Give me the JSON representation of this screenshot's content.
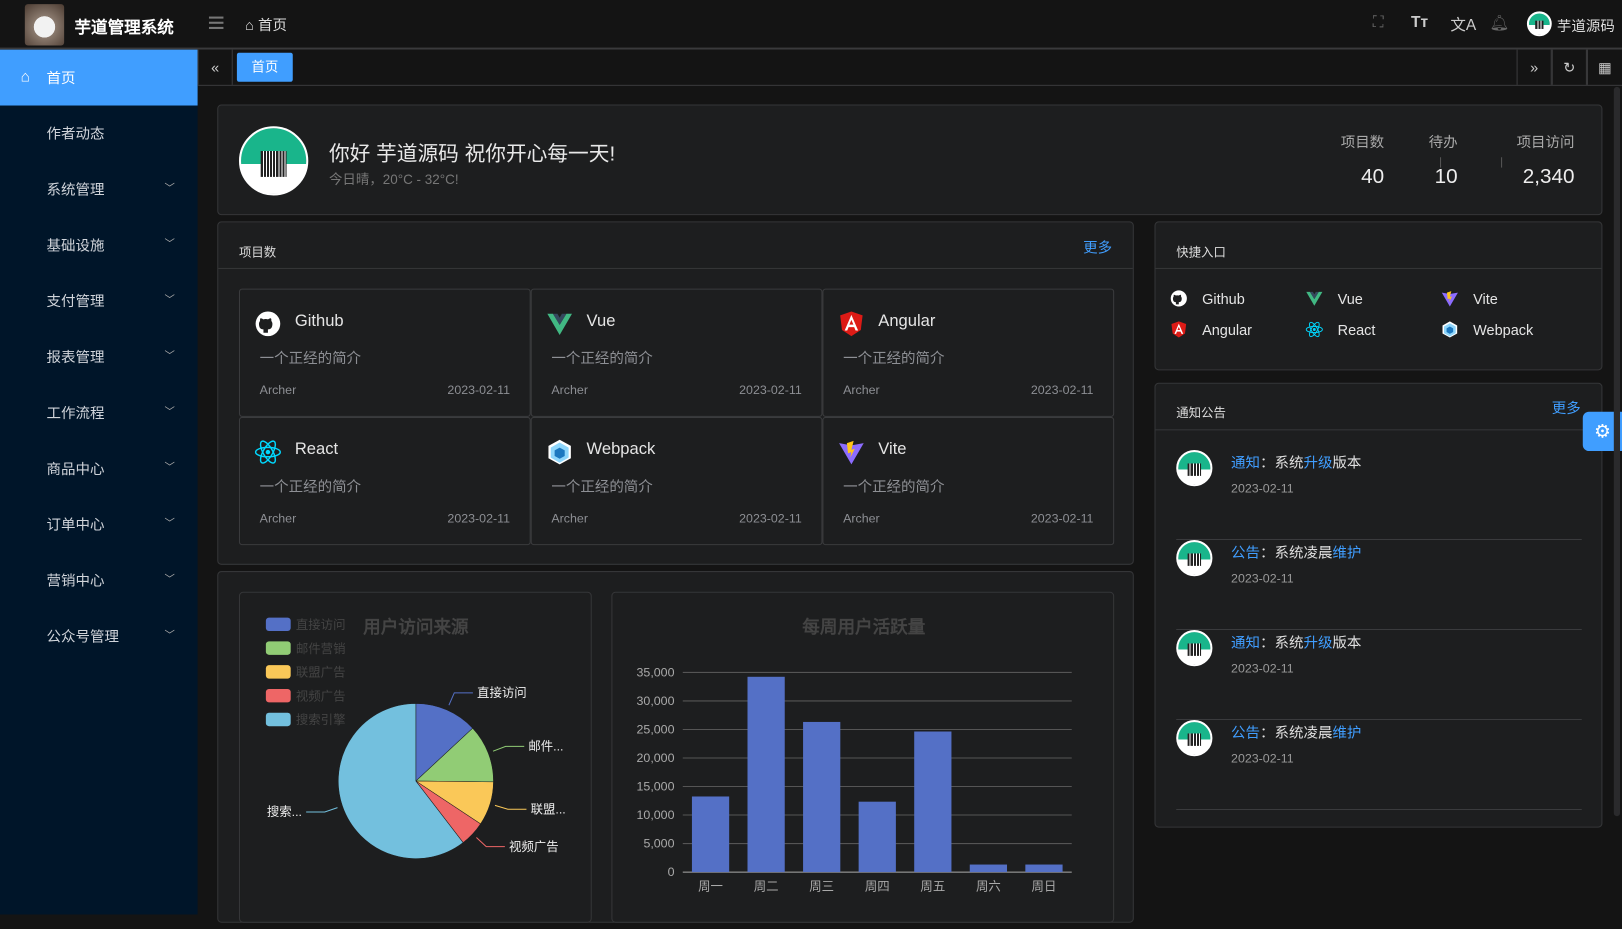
{
  "header": {
    "title": "芋道管理系统",
    "breadcrumb": "首页",
    "user_name": "芋道源码",
    "icons": [
      "fullscreen-icon",
      "font-size-icon",
      "translate-icon",
      "bell-icon"
    ]
  },
  "sidebar": {
    "items": [
      {
        "label": "首页",
        "active": true,
        "icon": "home-icon"
      },
      {
        "label": "作者动态"
      },
      {
        "label": "系统管理",
        "expandable": true
      },
      {
        "label": "基础设施",
        "expandable": true
      },
      {
        "label": "支付管理",
        "expandable": true
      },
      {
        "label": "报表管理",
        "expandable": true
      },
      {
        "label": "工作流程",
        "expandable": true
      },
      {
        "label": "商品中心",
        "expandable": true
      },
      {
        "label": "订单中心",
        "expandable": true
      },
      {
        "label": "营销中心",
        "expandable": true
      },
      {
        "label": "公众号管理",
        "expandable": true
      }
    ]
  },
  "tabs": [
    {
      "label": "首页",
      "active": true
    }
  ],
  "welcome": {
    "greeting": "你好 芋道源码 祝你开心每一天!",
    "weather": "今日晴，20°C - 32°C!",
    "stats": [
      {
        "label": "项目数",
        "value": "40"
      },
      {
        "label": "待办",
        "value": "10"
      },
      {
        "label": "项目访问",
        "value": "2,340"
      }
    ]
  },
  "projects": {
    "title": "项目数",
    "more": "更多",
    "items": [
      {
        "name": "Github",
        "icon": "github-icon",
        "desc": "一个正经的简介",
        "author": "Archer",
        "date": "2023-02-11"
      },
      {
        "name": "Vue",
        "icon": "vue-icon",
        "desc": "一个正经的简介",
        "author": "Archer",
        "date": "2023-02-11"
      },
      {
        "name": "Angular",
        "icon": "angular-icon",
        "desc": "一个正经的简介",
        "author": "Archer",
        "date": "2023-02-11"
      },
      {
        "name": "React",
        "icon": "react-icon",
        "desc": "一个正经的简介",
        "author": "Archer",
        "date": "2023-02-11"
      },
      {
        "name": "Webpack",
        "icon": "webpack-icon",
        "desc": "一个正经的简介",
        "author": "Archer",
        "date": "2023-02-11"
      },
      {
        "name": "Vite",
        "icon": "vite-icon",
        "desc": "一个正经的简介",
        "author": "Archer",
        "date": "2023-02-11"
      }
    ]
  },
  "shortcuts": {
    "title": "快捷入口",
    "items": [
      {
        "name": "Github",
        "icon": "github-icon"
      },
      {
        "name": "Vue",
        "icon": "vue-icon"
      },
      {
        "name": "Vite",
        "icon": "vite-icon"
      },
      {
        "name": "Angular",
        "icon": "angular-icon"
      },
      {
        "name": "React",
        "icon": "react-icon"
      },
      {
        "name": "Webpack",
        "icon": "webpack-icon"
      }
    ]
  },
  "notices": {
    "title": "通知公告",
    "more": "更多",
    "items": [
      {
        "type": "通知",
        "sep": "：",
        "pre": "系统",
        "hl": "升级",
        "post": "版本",
        "date": "2023-02-11"
      },
      {
        "type": "公告",
        "sep": "：",
        "pre": "系统凌晨",
        "hl": "维护",
        "post": "",
        "date": "2023-02-11"
      },
      {
        "type": "通知",
        "sep": "：",
        "pre": "系统",
        "hl": "升级",
        "post": "版本",
        "date": "2023-02-11"
      },
      {
        "type": "公告",
        "sep": "：",
        "pre": "系统凌晨",
        "hl": "维护",
        "post": "",
        "date": "2023-02-11"
      }
    ]
  },
  "colors": {
    "accent": "#409eff",
    "sidebar_bg": "#001529",
    "bar": "#5470c6"
  },
  "chart_data": [
    {
      "type": "pie",
      "title": "用户访问来源",
      "legend_position": "top-left",
      "slices": [
        {
          "name": "直接访问",
          "value": 335,
          "color": "#5470c6",
          "label": "直接访问"
        },
        {
          "name": "邮件营销",
          "value": 310,
          "color": "#91cc75",
          "label": "邮件..."
        },
        {
          "name": "联盟广告",
          "value": 234,
          "color": "#fac858",
          "label": "联盟..."
        },
        {
          "name": "视频广告",
          "value": 135,
          "color": "#ee6666",
          "label": "视频广告"
        },
        {
          "name": "搜索引擎",
          "value": 1548,
          "color": "#73c0de",
          "label": "搜索..."
        }
      ]
    },
    {
      "type": "bar",
      "title": "每周用户活跃量",
      "categories": [
        "周一",
        "周二",
        "周三",
        "周四",
        "周五",
        "周六",
        "周日"
      ],
      "values": [
        13253,
        34235,
        26321,
        12340,
        24643,
        1322,
        1324
      ],
      "ylim": [
        0,
        35000
      ],
      "yticks": [
        "0",
        "5,000",
        "10,000",
        "15,000",
        "20,000",
        "25,000",
        "30,000",
        "35,000"
      ],
      "grid": true
    }
  ]
}
